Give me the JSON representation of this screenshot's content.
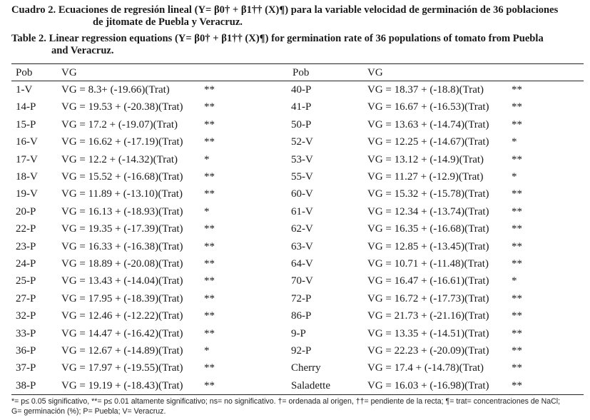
{
  "caption": {
    "es_line1": "Cuadro 2. Ecuaciones de regresión lineal (Y= β0† + β1†† (X)¶) para la variable velocidad de germinación de 36 poblaciones",
    "es_line2": "de jitomate de Puebla y Veracruz.",
    "en_line1": "Table 2. Linear regression equations (Y= β0† + β1†† (X)¶) for germination rate of 36 populations of tomato from Puebla",
    "en_line2": "and Veracruz."
  },
  "table": {
    "headers": [
      "Pob",
      "VG",
      "Pob",
      "VG"
    ],
    "rows": [
      {
        "pob1": "1-V",
        "eq1": "VG = 8.3+ (-19.66)(Trat)",
        "sig1": "**",
        "pob2": "40-P",
        "eq2": "VG = 18.37 + (-18.8)(Trat)",
        "sig2": "**"
      },
      {
        "pob1": "14-P",
        "eq1": "VG = 19.53 + (-20.38)(Trat)",
        "sig1": "**",
        "pob2": "41-P",
        "eq2": "VG = 16.67 + (-16.53)(Trat)",
        "sig2": "**"
      },
      {
        "pob1": "15-P",
        "eq1": "VG = 17.2 + (-19.07)(Trat)",
        "sig1": "**",
        "pob2": "50-P",
        "eq2": "VG = 13.63 + (-14.74)(Trat)",
        "sig2": "**"
      },
      {
        "pob1": "16-V",
        "eq1": "VG = 16.62 + (-17.19)(Trat)",
        "sig1": "**",
        "pob2": "52-V",
        "eq2": "VG = 12.25 + (-14.67)(Trat)",
        "sig2": "*"
      },
      {
        "pob1": "17-V",
        "eq1": "VG = 12.2 + (-14.32)(Trat)",
        "sig1": "*",
        "pob2": "53-V",
        "eq2": "VG = 13.12 + (-14.9)(Trat)",
        "sig2": "**"
      },
      {
        "pob1": "18-V",
        "eq1": "VG = 15.52 + (-16.68)(Trat)",
        "sig1": "**",
        "pob2": "55-V",
        "eq2": "VG = 11.27 + (-12.9)(Trat)",
        "sig2": "*"
      },
      {
        "pob1": "19-V",
        "eq1": "VG = 11.89 + (-13.10)(Trat)",
        "sig1": "**",
        "pob2": "60-V",
        "eq2": "VG = 15.32 + (-15.78)(Trat)",
        "sig2": "**"
      },
      {
        "pob1": "20-P",
        "eq1": "VG = 16.13 + (-18.93)(Trat)",
        "sig1": "*",
        "pob2": "61-V",
        "eq2": "VG = 12.34 + (-13.74)(Trat)",
        "sig2": "**"
      },
      {
        "pob1": "22-P",
        "eq1": "VG = 19.35 + (-17.39)(Trat)",
        "sig1": "**",
        "pob2": "62-V",
        "eq2": "VG = 16.35 + (-16.68)(Trat)",
        "sig2": "**"
      },
      {
        "pob1": "23-P",
        "eq1": "VG = 16.33 + (-16.38)(Trat)",
        "sig1": "**",
        "pob2": "63-V",
        "eq2": "VG = 12.85 + (-13.45)(Trat)",
        "sig2": "**"
      },
      {
        "pob1": "24-P",
        "eq1": "VG = 18.89 + (-20.08)(Trat)",
        "sig1": "**",
        "pob2": "64-V",
        "eq2": "VG = 10.71 + (-11.48)(Trat)",
        "sig2": "**"
      },
      {
        "pob1": "25-P",
        "eq1": "VG = 13.43 + (-14.04)(Trat)",
        "sig1": "**",
        "pob2": "70-V",
        "eq2": "VG = 16.47 + (-16.61)(Trat)",
        "sig2": "*"
      },
      {
        "pob1": "27-P",
        "eq1": "VG = 17.95 + (-18.39)(Trat)",
        "sig1": "**",
        "pob2": "72-P",
        "eq2": "VG = 16.72 + (-17.73)(Trat)",
        "sig2": "**"
      },
      {
        "pob1": "32-P",
        "eq1": "VG = 12.46 + (-12.22)(Trat)",
        "sig1": "**",
        "pob2": "86-P",
        "eq2": "VG = 21.73 + (-21.16)(Trat)",
        "sig2": "**"
      },
      {
        "pob1": "33-P",
        "eq1": "VG = 14.47 + (-16.42)(Trat)",
        "sig1": "**",
        "pob2": "9-P",
        "eq2": "VG = 13.35 + (-14.51)(Trat)",
        "sig2": "**"
      },
      {
        "pob1": "36-P",
        "eq1": "VG = 12.67 + (-14.89)(Trat)",
        "sig1": "*",
        "pob2": "92-P",
        "eq2": "VG = 22.23 + (-20.09)(Trat)",
        "sig2": "**"
      },
      {
        "pob1": "37-P",
        "eq1": "VG = 17.97 + (-19.55)(Trat)",
        "sig1": "**",
        "pob2": "Cherry",
        "eq2": "VG = 17.4 + (-14.78)(Trat)",
        "sig2": "**"
      },
      {
        "pob1": "38-P",
        "eq1": "VG = 19.19 + (-18.43)(Trat)",
        "sig1": "**",
        "pob2": "Saladette",
        "eq2": "VG = 16.03 + (-16.98)(Trat)",
        "sig2": "**"
      }
    ]
  },
  "footnote": {
    "line1": "*= p≤ 0.05 significativo, **= p≤ 0.01 altamente significativo; ns= no significativo. †= ordenada al origen, ††= pendiente de la recta; ¶= trat= concentraciones de NaCl;",
    "line2": "G= germinación (%); P= Puebla; V= Veracruz."
  }
}
